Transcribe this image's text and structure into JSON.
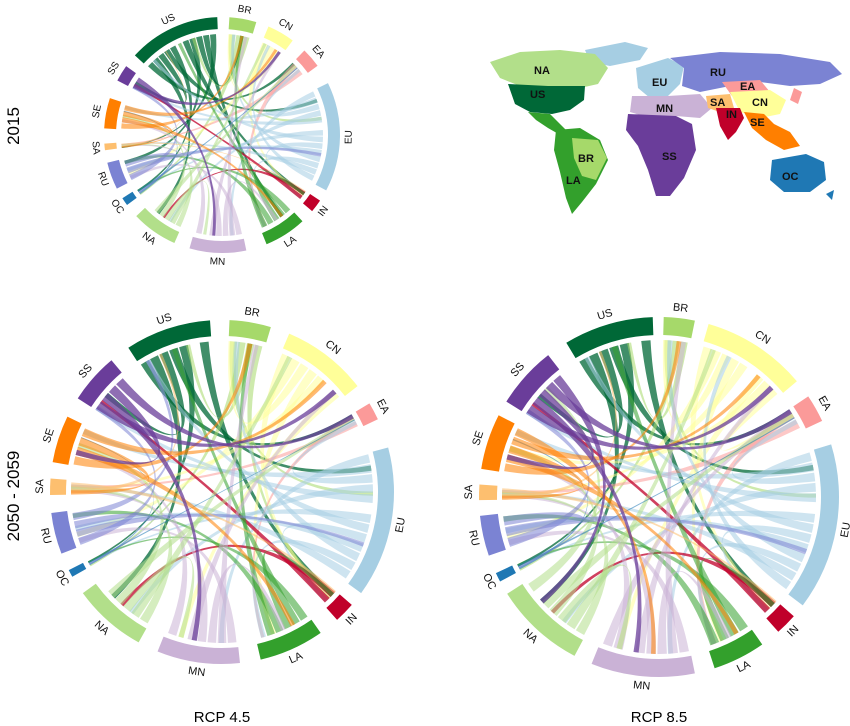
{
  "figure": {
    "row_labels": [
      "2015",
      "2050 - 2059"
    ],
    "column_labels": [
      "RCP 4.5",
      "RCP 8.5"
    ]
  },
  "regions": [
    {
      "code": "US",
      "color": "#006837"
    },
    {
      "code": "BR",
      "color": "#a6d96a"
    },
    {
      "code": "CN",
      "color": "#ffff99"
    },
    {
      "code": "EA",
      "color": "#fb9a99"
    },
    {
      "code": "EU",
      "color": "#a6cee3"
    },
    {
      "code": "IN",
      "color": "#c0002a"
    },
    {
      "code": "LA",
      "color": "#33a02c"
    },
    {
      "code": "MN",
      "color": "#cab2d6"
    },
    {
      "code": "NA",
      "color": "#b2df8a"
    },
    {
      "code": "OC",
      "color": "#1f78b4"
    },
    {
      "code": "RU",
      "color": "#7b83d3"
    },
    {
      "code": "SA",
      "color": "#fdbf6f"
    },
    {
      "code": "SE",
      "color": "#ff7f00"
    },
    {
      "code": "SS",
      "color": "#6a3d9a"
    }
  ],
  "diagrams": [
    {
      "id": "chord-2015",
      "arcs": [
        {
          "code": "US",
          "start": 312.4,
          "end": 357.7
        },
        {
          "code": "BR",
          "start": 3.6,
          "end": 16.9
        },
        {
          "code": "CN",
          "start": 23.2,
          "end": 36.8
        },
        {
          "code": "EA",
          "start": 44.3,
          "end": 54.1
        },
        {
          "code": "EU",
          "start": 63.9,
          "end": 118.0
        },
        {
          "code": "IN",
          "start": 123.8,
          "end": 130.2
        },
        {
          "code": "LA",
          "start": 137.0,
          "end": 157.8
        },
        {
          "code": "MN",
          "start": 168.1,
          "end": 196.0
        },
        {
          "code": "NA",
          "start": 203.8,
          "end": 226.6
        },
        {
          "code": "OC",
          "start": 233.6,
          "end": 237.6
        },
        {
          "code": "RU",
          "start": 243.0,
          "end": 256.4
        },
        {
          "code": "SA",
          "start": 262.6,
          "end": 265.8
        },
        {
          "code": "SE",
          "start": 273.2,
          "end": 288.2
        },
        {
          "code": "SS",
          "start": 297.5,
          "end": 305.7
        }
      ]
    },
    {
      "id": "chord-2050-rcp45",
      "arcs": [
        {
          "code": "US",
          "start": 327.0,
          "end": 356.0
        },
        {
          "code": "BR",
          "start": 2.5,
          "end": 16.5
        },
        {
          "code": "CN",
          "start": 23.0,
          "end": 52.0
        },
        {
          "code": "EA",
          "start": 59.0,
          "end": 65.0
        },
        {
          "code": "EU",
          "start": 75.0,
          "end": 126.0
        },
        {
          "code": "IN",
          "start": 131.0,
          "end": 138.0
        },
        {
          "code": "LA",
          "start": 145.0,
          "end": 167.0
        },
        {
          "code": "MN",
          "start": 174.0,
          "end": 202.0
        },
        {
          "code": "NA",
          "start": 209.0,
          "end": 234.0
        },
        {
          "code": "OC",
          "start": 240.5,
          "end": 243.0
        },
        {
          "code": "RU",
          "start": 249.0,
          "end": 263.0
        },
        {
          "code": "SA",
          "start": 269.0,
          "end": 274.5
        },
        {
          "code": "SE",
          "start": 280.0,
          "end": 296.0
        },
        {
          "code": "SS",
          "start": 303.0,
          "end": 320.0
        }
      ]
    },
    {
      "id": "chord-2050-rcp85",
      "arcs": [
        {
          "code": "US",
          "start": 329.0,
          "end": 358.0
        },
        {
          "code": "BR",
          "start": 1.5,
          "end": 11.5
        },
        {
          "code": "CN",
          "start": 16.0,
          "end": 50.0
        },
        {
          "code": "EA",
          "start": 56.0,
          "end": 65.0
        },
        {
          "code": "EU",
          "start": 73.0,
          "end": 127.0
        },
        {
          "code": "IN",
          "start": 131.5,
          "end": 138.5
        },
        {
          "code": "LA",
          "start": 145.0,
          "end": 162.0
        },
        {
          "code": "MN",
          "start": 168.5,
          "end": 202.0
        },
        {
          "code": "NA",
          "start": 208.0,
          "end": 237.5
        },
        {
          "code": "OC",
          "start": 242.0,
          "end": 245.0
        },
        {
          "code": "RU",
          "start": 251.0,
          "end": 264.0
        },
        {
          "code": "SA",
          "start": 269.0,
          "end": 274.0
        },
        {
          "code": "SE",
          "start": 279.0,
          "end": 297.0
        },
        {
          "code": "SS",
          "start": 302.0,
          "end": 322.0
        }
      ]
    }
  ],
  "map": {
    "labels": [
      "NA",
      "US",
      "EU",
      "RU",
      "EA",
      "CN",
      "MN",
      "SA",
      "IN",
      "SE",
      "BR",
      "SS",
      "LA",
      "OC"
    ]
  }
}
